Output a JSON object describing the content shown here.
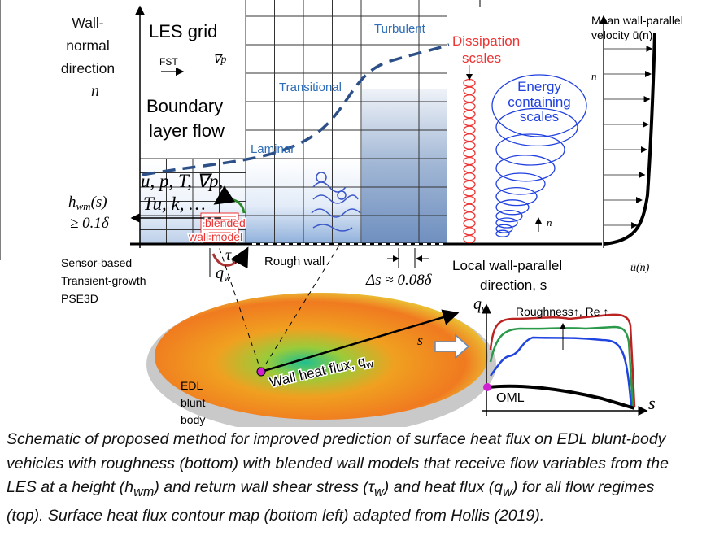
{
  "diagram": {
    "wall_normal": [
      "Wall-",
      "normal",
      "direction"
    ],
    "n_axis": "n",
    "les_grid": "LES grid",
    "fst": "FST",
    "grad_p": "∇p",
    "turbulent": "Turbulent",
    "transitional": "Transitional",
    "laminar": "Laminar",
    "boundary_layer": [
      "Boundary",
      "layer flow"
    ],
    "flow_vars": [
      "u, p, T, ∇p,",
      "Tu, k, …"
    ],
    "h_wm": [
      "h",
      "wm",
      "(s)"
    ],
    "h_min": "≥ 0.1δ",
    "blended": [
      "blended",
      "wall model"
    ],
    "tau_w": [
      "τ",
      "w"
    ],
    "q_w": [
      "q",
      "w"
    ],
    "methods": [
      "Sensor-based",
      "Transient-growth",
      "PSE3D"
    ],
    "rough_wall": "Rough wall",
    "delta_s": "Δs ≈ 0.08δ",
    "dissipation": [
      "Dissipation",
      "scales"
    ],
    "energy": [
      "Energy",
      "containing",
      "scales"
    ],
    "n_small": "n",
    "mean_velocity": [
      "Mean wall-parallel",
      "velocity ū(n)"
    ],
    "n_profile": "n",
    "u_n": "ū(n)",
    "local_direction": [
      "Local wall-parallel",
      "direction, s"
    ],
    "plot_qw": [
      "q",
      "w"
    ],
    "roughness": "Roughness↑, Re ↑",
    "s_body": "s",
    "wall_heat_flux": [
      "Wall heat flux, q",
      "w"
    ],
    "edl": [
      "EDL",
      "blunt",
      "body"
    ],
    "oml": "OML",
    "s_plot": "s"
  },
  "caption": [
    "Schematic of proposed method for improved prediction of surface heat flux on EDL blunt-body vehicles with roughness (bottom) with blended wall models that receive flow variables from the LES at a height (h",
    "wm",
    ") and return wall shear stress (τ",
    "w",
    ") and heat flux (q",
    "w",
    ") for all flow regimes (top). Surface heat flux contour map (bottom left) adapted from Hollis (2019)."
  ]
}
